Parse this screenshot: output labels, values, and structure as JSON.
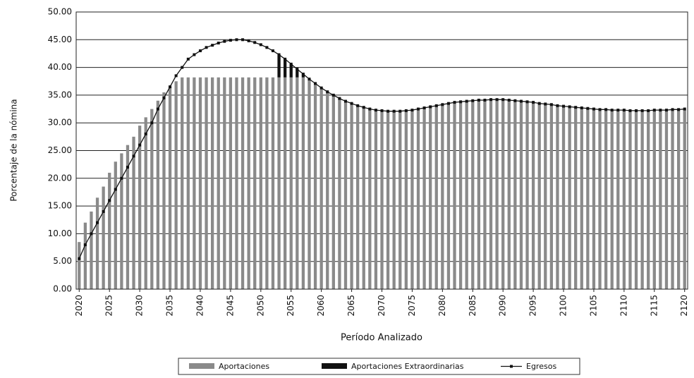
{
  "chart_data": {
    "type": "bar",
    "y_label": "Porcentaje de la nómina",
    "x_label": "Período Analizado",
    "x": [
      2020,
      2021,
      2022,
      2023,
      2024,
      2025,
      2026,
      2027,
      2028,
      2029,
      2030,
      2031,
      2032,
      2033,
      2034,
      2035,
      2036,
      2037,
      2038,
      2039,
      2040,
      2041,
      2042,
      2043,
      2044,
      2045,
      2046,
      2047,
      2048,
      2049,
      2050,
      2051,
      2052,
      2053,
      2054,
      2055,
      2056,
      2057,
      2058,
      2059,
      2060,
      2061,
      2062,
      2063,
      2064,
      2065,
      2066,
      2067,
      2068,
      2069,
      2070,
      2071,
      2072,
      2073,
      2074,
      2075,
      2076,
      2077,
      2078,
      2079,
      2080,
      2081,
      2082,
      2083,
      2084,
      2085,
      2086,
      2087,
      2088,
      2089,
      2090,
      2091,
      2092,
      2093,
      2094,
      2095,
      2096,
      2097,
      2098,
      2099,
      2100,
      2101,
      2102,
      2103,
      2104,
      2105,
      2106,
      2107,
      2108,
      2109,
      2110,
      2111,
      2112,
      2113,
      2114,
      2115,
      2116,
      2117,
      2118,
      2119,
      2120
    ],
    "series": [
      {
        "name": "Aportaciones",
        "color": "#8a8a8a",
        "stacked": true,
        "values": [
          8.5,
          12,
          14,
          16.5,
          18.5,
          21,
          23,
          24.5,
          26,
          27.5,
          29.5,
          31,
          32.5,
          34,
          35.5,
          36.5,
          37.5,
          38.2,
          38.2,
          38.2,
          38.2,
          38.2,
          38.2,
          38.2,
          38.2,
          38.2,
          38.2,
          38.2,
          38.2,
          38.2,
          38.2,
          38.2,
          38.2,
          38.2,
          38.2,
          38.2,
          38.2,
          38.2,
          37.9,
          37.1,
          36.3,
          35.6,
          35,
          34.4,
          33.9,
          33.5,
          33.1,
          32.8,
          32.5,
          32.3,
          32.2,
          32.1,
          32.1,
          32.1,
          32.2,
          32.3,
          32.5,
          32.7,
          32.9,
          33.1,
          33.3,
          33.5,
          33.7,
          33.8,
          33.9,
          34,
          34.1,
          34.1,
          34.2,
          34.2,
          34.2,
          34.1,
          34,
          33.9,
          33.8,
          33.7,
          33.5,
          33.4,
          33.3,
          33.1,
          33,
          32.9,
          32.8,
          32.7,
          32.6,
          32.5,
          32.4,
          32.4,
          32.3,
          32.3,
          32.3,
          32.2,
          32.2,
          32.2,
          32.2,
          32.3,
          32.3,
          32.3,
          32.4,
          32.4,
          32.5
        ]
      },
      {
        "name": "Aportaciones Extraordinarias",
        "color": "#111111",
        "stacked": true,
        "values": [
          0,
          0,
          0,
          0,
          0,
          0,
          0,
          0,
          0,
          0,
          0,
          0,
          0,
          0,
          0,
          0,
          0,
          0,
          0,
          0,
          0,
          0,
          0,
          0,
          0,
          0,
          0,
          0,
          0,
          0,
          0,
          0,
          0,
          4.1,
          3.3,
          2.4,
          1.5,
          0.6,
          0,
          0,
          0,
          0,
          0,
          0,
          0,
          0,
          0,
          0,
          0,
          0,
          0,
          0,
          0,
          0,
          0,
          0,
          0,
          0,
          0,
          0,
          0,
          0,
          0,
          0,
          0,
          0,
          0,
          0,
          0,
          0,
          0,
          0,
          0,
          0,
          0,
          0,
          0,
          0,
          0,
          0,
          0,
          0,
          0,
          0,
          0,
          0,
          0,
          0,
          0,
          0,
          0,
          0,
          0,
          0,
          0,
          0,
          0,
          0,
          0,
          0,
          0
        ]
      },
      {
        "name": "Egresos",
        "color": "#111111",
        "kind": "line",
        "values": [
          5.5,
          8,
          10,
          12,
          14,
          16,
          18,
          20,
          22,
          24,
          26,
          28,
          30,
          32.5,
          34.5,
          36.5,
          38.5,
          40,
          41.5,
          42.3,
          43,
          43.6,
          44,
          44.4,
          44.7,
          44.9,
          45,
          45,
          44.8,
          44.5,
          44.1,
          43.6,
          43,
          42.3,
          41.5,
          40.6,
          39.7,
          38.8,
          37.9,
          37.1,
          36.3,
          35.6,
          35,
          34.4,
          33.9,
          33.5,
          33.1,
          32.8,
          32.5,
          32.3,
          32.2,
          32.1,
          32.1,
          32.1,
          32.2,
          32.3,
          32.5,
          32.7,
          32.9,
          33.1,
          33.3,
          33.5,
          33.7,
          33.8,
          33.9,
          34,
          34.1,
          34.1,
          34.2,
          34.2,
          34.2,
          34.1,
          34,
          33.9,
          33.8,
          33.7,
          33.5,
          33.4,
          33.3,
          33.1,
          33,
          32.9,
          32.8,
          32.7,
          32.6,
          32.5,
          32.4,
          32.4,
          32.3,
          32.3,
          32.3,
          32.2,
          32.2,
          32.2,
          32.2,
          32.3,
          32.3,
          32.3,
          32.4,
          32.4,
          32.5
        ]
      }
    ],
    "xlim": [
      2019.5,
      2120.5
    ],
    "xticks": [
      2020,
      2025,
      2030,
      2035,
      2040,
      2045,
      2050,
      2055,
      2060,
      2065,
      2070,
      2075,
      2080,
      2085,
      2090,
      2095,
      2100,
      2105,
      2110,
      2115,
      2120
    ],
    "ylim": [
      0,
      50
    ],
    "yticks": [
      {
        "value": 0,
        "label": "0.00"
      },
      {
        "value": 5,
        "label": "5.00"
      },
      {
        "value": 10,
        "label": "10.00"
      },
      {
        "value": 15,
        "label": "15.00"
      },
      {
        "value": 20,
        "label": "20.00"
      },
      {
        "value": 25,
        "label": "25.00"
      },
      {
        "value": 30,
        "label": "30.00"
      },
      {
        "value": 35,
        "label": "35.00"
      },
      {
        "value": 40,
        "label": "40.00"
      },
      {
        "value": 45,
        "label": "45.00"
      },
      {
        "value": 50,
        "label": "50.00"
      }
    ],
    "grid": true,
    "legend": "bottom"
  }
}
